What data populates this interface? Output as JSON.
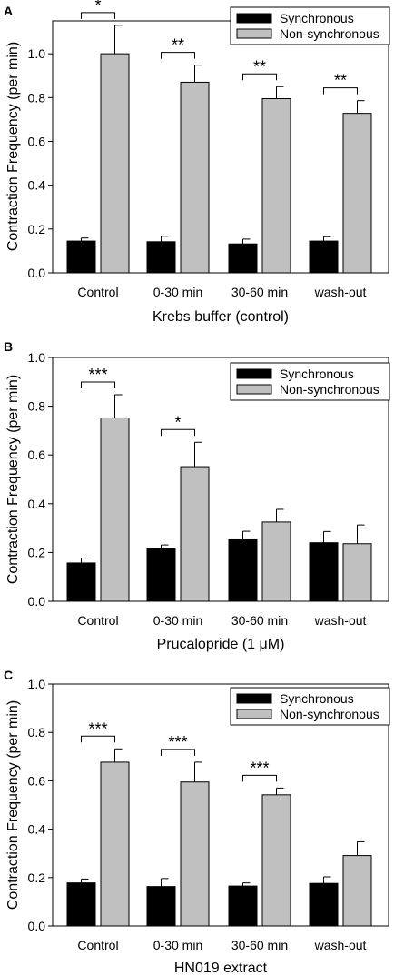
{
  "chart_data": [
    {
      "type": "bar",
      "panel": "A",
      "xlabel": "Krebs buffer (control)",
      "ylabel": "Contraction Frequency (per min)",
      "ylim": [
        0,
        1.15
      ],
      "yticks": [
        "0.0",
        "0.2",
        "0.4",
        "0.6",
        "0.8",
        "1.0"
      ],
      "categories": [
        "Control",
        "0-30 min",
        "30-60 min",
        "wash-out"
      ],
      "legend_position": "top-right",
      "series": [
        {
          "name": "Synchronous",
          "color": "#000000",
          "values": [
            0.145,
            0.142,
            0.132,
            0.145
          ],
          "errors": [
            0.014,
            0.025,
            0.022,
            0.02
          ]
        },
        {
          "name": "Non-synchronous",
          "color": "#c0c0c0",
          "values": [
            1.0,
            0.87,
            0.795,
            0.728
          ],
          "errors": [
            0.13,
            0.078,
            0.055,
            0.058
          ]
        }
      ],
      "significance": [
        "*",
        "**",
        "**",
        "**"
      ]
    },
    {
      "type": "bar",
      "panel": "B",
      "xlabel": "Prucalopride (1 μM)",
      "ylabel": "Contraction Frequency (per min)",
      "ylim": [
        0,
        1.0
      ],
      "yticks": [
        "0.0",
        "0.2",
        "0.4",
        "0.6",
        "0.8",
        "1.0"
      ],
      "categories": [
        "Control",
        "0-30 min",
        "30-60 min",
        "wash-out"
      ],
      "legend_position": "top-right",
      "series": [
        {
          "name": "Synchronous",
          "color": "#000000",
          "values": [
            0.157,
            0.218,
            0.252,
            0.24
          ],
          "errors": [
            0.02,
            0.013,
            0.035,
            0.046
          ]
        },
        {
          "name": "Non-synchronous",
          "color": "#c0c0c0",
          "values": [
            0.752,
            0.552,
            0.325,
            0.236
          ],
          "errors": [
            0.095,
            0.1,
            0.052,
            0.077
          ]
        }
      ],
      "significance": [
        "***",
        "*",
        "",
        ""
      ]
    },
    {
      "type": "bar",
      "panel": "C",
      "xlabel": "HN019 extract",
      "ylabel": "Contraction Frequency (per min)",
      "ylim": [
        0,
        1.0
      ],
      "yticks": [
        "0.0",
        "0.2",
        "0.4",
        "0.6",
        "0.8",
        "1.0"
      ],
      "categories": [
        "Control",
        "0-30 min",
        "30-60 min",
        "wash-out"
      ],
      "legend_position": "top-right",
      "series": [
        {
          "name": "Synchronous",
          "color": "#000000",
          "values": [
            0.178,
            0.163,
            0.165,
            0.176
          ],
          "errors": [
            0.016,
            0.033,
            0.013,
            0.027
          ]
        },
        {
          "name": "Non-synchronous",
          "color": "#c0c0c0",
          "values": [
            0.677,
            0.595,
            0.542,
            0.291
          ],
          "errors": [
            0.055,
            0.082,
            0.028,
            0.057
          ]
        }
      ],
      "significance": [
        "***",
        "***",
        "***",
        ""
      ]
    }
  ]
}
